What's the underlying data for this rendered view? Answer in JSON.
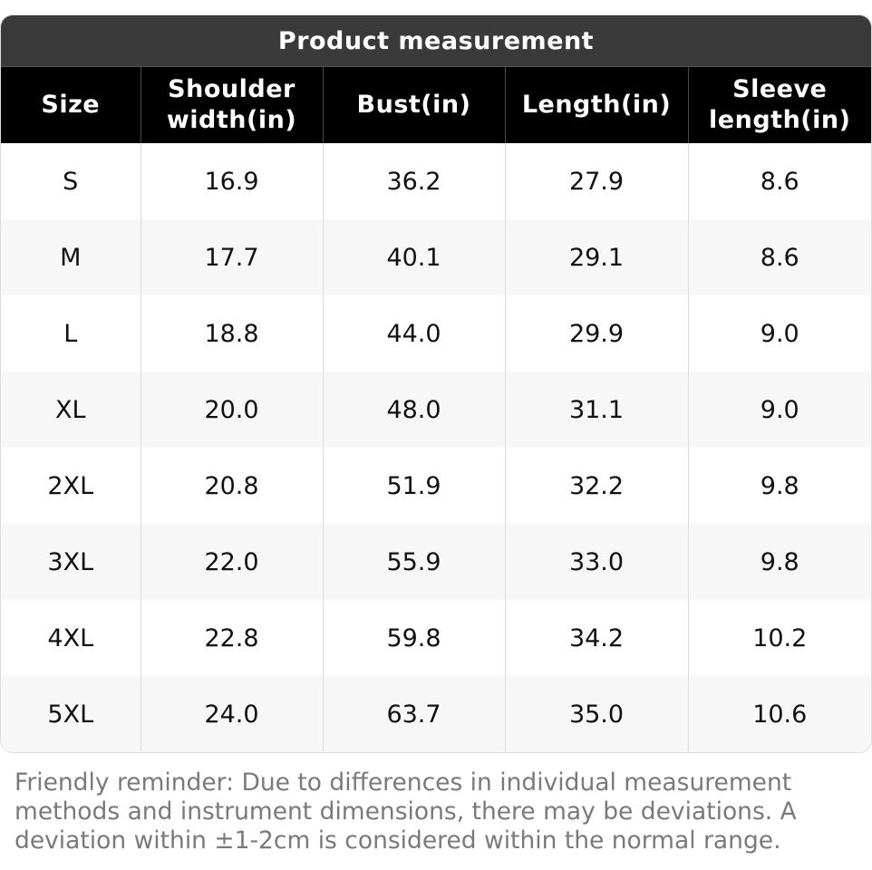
{
  "title": "Product measurement",
  "columns": [
    "Size",
    "Shoulder width(in)",
    "Bust(in)",
    "Length(in)",
    "Sleeve length(in)"
  ],
  "rows": [
    [
      "S",
      "16.9",
      "36.2",
      "27.9",
      "8.6"
    ],
    [
      "M",
      "17.7",
      "40.1",
      "29.1",
      "8.6"
    ],
    [
      "L",
      "18.8",
      "44.0",
      "29.9",
      "9.0"
    ],
    [
      "XL",
      "20.0",
      "48.0",
      "31.1",
      "9.0"
    ],
    [
      "2XL",
      "20.8",
      "51.9",
      "32.2",
      "9.8"
    ],
    [
      "3XL",
      "22.0",
      "55.9",
      "33.0",
      "9.8"
    ],
    [
      "4XL",
      "22.8",
      "59.8",
      "34.2",
      "10.2"
    ],
    [
      "5XL",
      "24.0",
      "63.7",
      "35.0",
      "10.6"
    ]
  ],
  "reminder": "Friendly reminder: Due to differences in individual measurement methods and instrument dimensions, there may be deviations. A deviation within ±1-2cm is considered within the normal range.",
  "colors": {
    "title_bg": "#3a3a3a",
    "header_bg": "#000000",
    "stripe_bg": "#f7f7f7",
    "reminder_text": "#7a7a7a"
  }
}
